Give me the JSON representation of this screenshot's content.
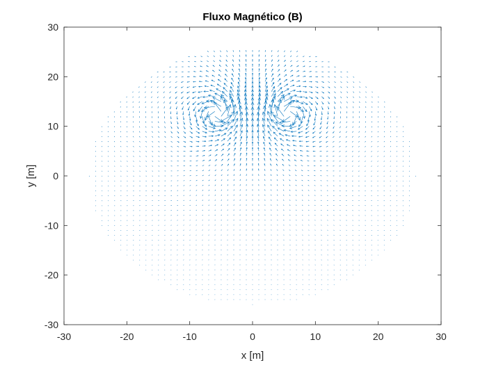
{
  "chart_data": {
    "type": "quiver",
    "title": "Fluxo Magnético (B)",
    "xlabel": "x [m]",
    "ylabel": "y [m]",
    "xlim": [
      -30,
      30
    ],
    "ylim": [
      -30,
      30
    ],
    "xticks": [
      "-30",
      "-20",
      "-10",
      "0",
      "10",
      "20",
      "30"
    ],
    "yticks": [
      "-30",
      "-20",
      "-10",
      "0",
      "10",
      "20",
      "30"
    ],
    "grid": false,
    "box": true,
    "series": [
      {
        "color": "#0072BD",
        "field": "magnetic flux density vectors on a grid with spacing 1 m inside a circular region of radius 26 m, clipped at y = 25.5 m; two counter-rotating vortex cores",
        "grid_spacing": 1,
        "region_radius": 26,
        "region_ymax": 25.5,
        "sources": [
          {
            "x": -5.5,
            "y": 12.5,
            "current": 1
          },
          {
            "x": 5.5,
            "y": 12.5,
            "current": -1
          }
        ]
      }
    ]
  }
}
